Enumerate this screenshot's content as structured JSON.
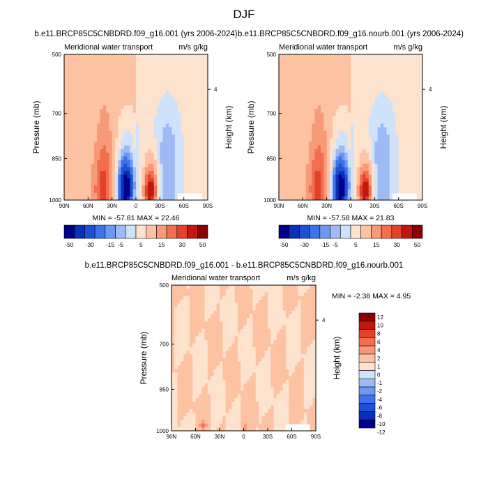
{
  "figure_title": "DJF",
  "chart_data": [
    {
      "type": "heatmap",
      "title": "b.e11.BRCP85C5CNBDRD.f09_g16.001 (yrs 2006-2024)",
      "left_subtitle": "Meridional water transport",
      "right_subtitle": "m/s g/kg",
      "ylabel": "Pressure (mb)",
      "y2label": "Height (km)",
      "x_ticks": [
        "90N",
        "60N",
        "30N",
        "0",
        "30S",
        "60S",
        "90S"
      ],
      "y_ticks": [
        "500",
        "700",
        "850",
        "1000"
      ],
      "y2_ticks": [
        "4"
      ],
      "min_max_text": "MIN = -57.81  MAX =  22.46",
      "colorbar_labels": [
        "-50",
        "-30",
        "-15",
        "-5",
        "5",
        "15",
        "30",
        "50"
      ],
      "colorbar_levels": [
        -50,
        -40,
        -30,
        -20,
        -15,
        -10,
        -5,
        0,
        5,
        10,
        15,
        20,
        30,
        40,
        50
      ],
      "min": -57.81,
      "max": 22.46
    },
    {
      "type": "heatmap",
      "title": "b.e11.BRCP85C5CNBDRD.f09_g16.nourb.001 (yrs 2006-2024)",
      "left_subtitle": "Meridional water transport",
      "right_subtitle": "m/s g/kg",
      "ylabel": "Pressure (mb)",
      "y2label": "Height (km)",
      "x_ticks": [
        "90N",
        "60N",
        "30N",
        "0",
        "30S",
        "60S",
        "90S"
      ],
      "y_ticks": [
        "500",
        "700",
        "850",
        "1000"
      ],
      "y2_ticks": [
        "4"
      ],
      "min_max_text": "MIN = -57.58  MAX =  21.83",
      "colorbar_labels": [
        "-50",
        "-30",
        "-15",
        "-5",
        "5",
        "15",
        "30",
        "50"
      ],
      "colorbar_levels": [
        -50,
        -40,
        -30,
        -20,
        -15,
        -10,
        -5,
        0,
        5,
        10,
        15,
        20,
        30,
        40,
        50
      ],
      "min": -57.58,
      "max": 21.83
    },
    {
      "type": "heatmap",
      "title": "b.e11.BRCP85C5CNBDRD.f09_g16.001 - b.e11.BRCP85C5CNBDRD.f09_g16.nourb.001",
      "left_subtitle": "Meridional water transport",
      "right_subtitle": "m/s g/kg",
      "ylabel": "Pressure (mb)",
      "y2label": "Height (km)",
      "x_ticks": [
        "90N",
        "60N",
        "30N",
        "0",
        "30S",
        "60S",
        "90S"
      ],
      "y_ticks": [
        "500",
        "700",
        "850",
        "1000"
      ],
      "y2_ticks": [
        "4"
      ],
      "min_max_text": "MIN = -2.38  MAX =  4.95",
      "colorbar_labels": [
        "12",
        "10",
        "8",
        "6",
        "4",
        "2",
        "1",
        "0",
        "-1",
        "-2",
        "-4",
        "-6",
        "-8",
        "-10",
        "-12"
      ],
      "colorbar_levels": [
        -12,
        -10,
        -8,
        -6,
        -4,
        -2,
        -1,
        0,
        1,
        2,
        4,
        6,
        8,
        10,
        12
      ],
      "min": -2.38,
      "max": 4.95
    }
  ],
  "palette": [
    "#00008b",
    "#0a2fb8",
    "#1f4fd6",
    "#3d72ec",
    "#6b98f2",
    "#9dbaf5",
    "#cfe2fb",
    "#fde3cd",
    "#fcc2a2",
    "#f89a78",
    "#f36e4e",
    "#e3412a",
    "#c0180f",
    "#8b0000"
  ]
}
